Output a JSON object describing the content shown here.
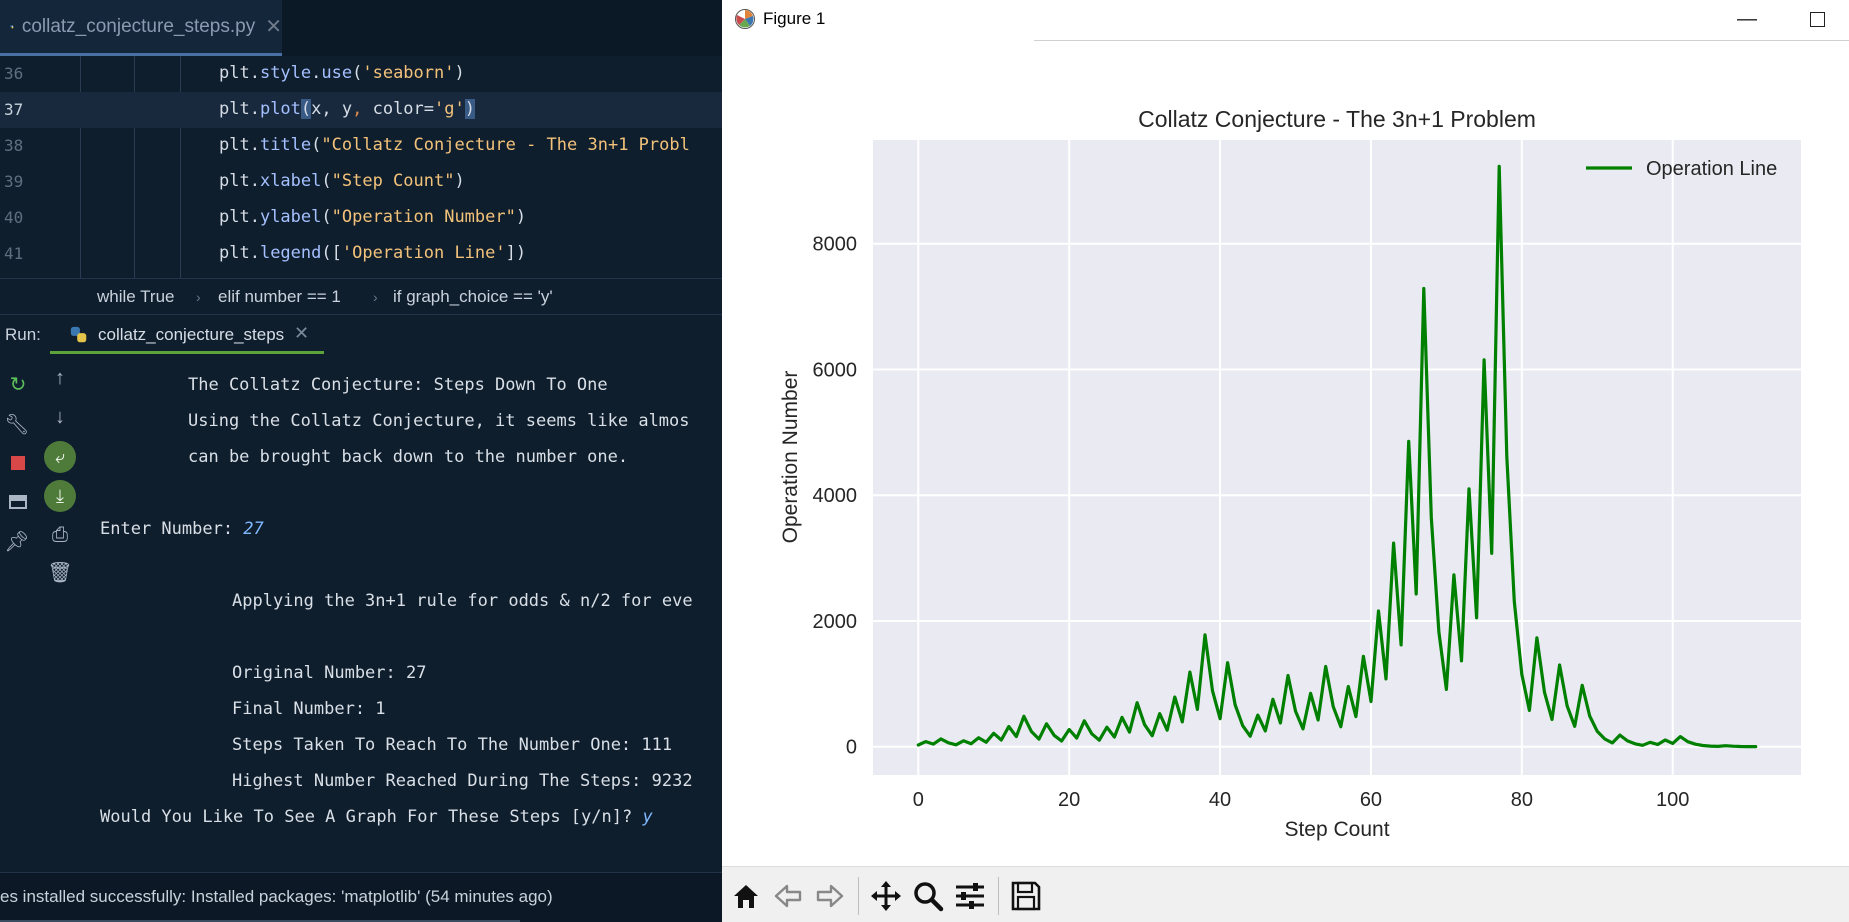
{
  "ide": {
    "tab_label": "collatz_conjecture_steps.py",
    "code_lines": [
      {
        "num": "36",
        "parts": [
          [
            "id",
            "plt."
          ],
          [
            "fn",
            "style"
          ],
          [
            "id",
            "."
          ],
          [
            "fn",
            "use"
          ],
          [
            "id",
            "("
          ],
          [
            "str",
            "'seaborn'"
          ],
          [
            "id",
            ")"
          ]
        ]
      },
      {
        "num": "37",
        "active": true,
        "parts": [
          [
            "id",
            "plt."
          ],
          [
            "fn",
            "plot"
          ],
          [
            "caret",
            "("
          ],
          [
            "id",
            "x, y"
          ],
          [
            "kw",
            ", "
          ],
          [
            "id",
            "color="
          ],
          [
            "str",
            "'g'"
          ],
          [
            "caret",
            ")"
          ]
        ]
      },
      {
        "num": "38",
        "parts": [
          [
            "id",
            "plt."
          ],
          [
            "fn",
            "title"
          ],
          [
            "id",
            "("
          ],
          [
            "str",
            "\"Collatz Conjecture - The 3n+1 Probl"
          ]
        ]
      },
      {
        "num": "39",
        "parts": [
          [
            "id",
            "plt."
          ],
          [
            "fn",
            "xlabel"
          ],
          [
            "id",
            "("
          ],
          [
            "str",
            "\"Step Count\""
          ],
          [
            "id",
            ")"
          ]
        ]
      },
      {
        "num": "40",
        "parts": [
          [
            "id",
            "plt."
          ],
          [
            "fn",
            "ylabel"
          ],
          [
            "id",
            "("
          ],
          [
            "str",
            "\"Operation Number\""
          ],
          [
            "id",
            ")"
          ]
        ]
      },
      {
        "num": "41",
        "parts": [
          [
            "id",
            "plt."
          ],
          [
            "fn",
            "legend"
          ],
          [
            "id",
            "(["
          ],
          [
            "str",
            "'Operation Line'"
          ],
          [
            "id",
            "])"
          ]
        ]
      }
    ],
    "breadcrumb": [
      "while True",
      "elif number == 1",
      "if graph_choice == 'y'"
    ],
    "run_label": "Run:",
    "run_tab_label": "collatz_conjecture_steps",
    "console": {
      "line1": "The Collatz Conjecture: Steps Down To One",
      "line2": "Using the Collatz Conjecture, it seems like almos",
      "line3": "can be brought back down to the number one.",
      "prompt": "Enter Number: ",
      "input_value": "27",
      "applying": "Applying the 3n+1 rule for odds & n/2 for eve",
      "original": "Original Number: 27",
      "final": "Final Number: 1",
      "steps": "Steps Taken To Reach To The Number One: 111",
      "highest": "Highest Number Reached During The Steps: 9232",
      "graph_prompt": "Would You Like To See A Graph For These Steps [y/n]? ",
      "graph_answer": "y"
    },
    "status_text": "es installed successfully: Installed packages: 'matplotlib' (54 minutes ago)"
  },
  "figure": {
    "window_title": "Figure 1"
  },
  "chart_data": {
    "type": "line",
    "title": "Collatz Conjecture - The 3n+1 Problem",
    "xlabel": "Step Count",
    "ylabel": "Operation Number",
    "xlim": [
      -6,
      117
    ],
    "ylim": [
      -450,
      9650
    ],
    "xticks": [
      0,
      20,
      40,
      60,
      80,
      100
    ],
    "yticks": [
      0,
      2000,
      4000,
      6000,
      8000
    ],
    "grid": true,
    "legend_position": "upper right",
    "line_color": "#008000",
    "series": [
      {
        "name": "Operation Line",
        "x": [
          0,
          1,
          2,
          3,
          4,
          5,
          6,
          7,
          8,
          9,
          10,
          11,
          12,
          13,
          14,
          15,
          16,
          17,
          18,
          19,
          20,
          21,
          22,
          23,
          24,
          25,
          26,
          27,
          28,
          29,
          30,
          31,
          32,
          33,
          34,
          35,
          36,
          37,
          38,
          39,
          40,
          41,
          42,
          43,
          44,
          45,
          46,
          47,
          48,
          49,
          50,
          51,
          52,
          53,
          54,
          55,
          56,
          57,
          58,
          59,
          60,
          61,
          62,
          63,
          64,
          65,
          66,
          67,
          68,
          69,
          70,
          71,
          72,
          73,
          74,
          75,
          76,
          77,
          78,
          79,
          80,
          81,
          82,
          83,
          84,
          85,
          86,
          87,
          88,
          89,
          90,
          91,
          92,
          93,
          94,
          95,
          96,
          97,
          98,
          99,
          100,
          101,
          102,
          103,
          104,
          105,
          106,
          107,
          108,
          109,
          110,
          111
        ],
        "y": [
          27,
          82,
          41,
          124,
          62,
          31,
          94,
          47,
          142,
          71,
          214,
          107,
          322,
          161,
          484,
          242,
          121,
          364,
          182,
          91,
          274,
          137,
          412,
          206,
          103,
          310,
          155,
          466,
          233,
          700,
          350,
          175,
          526,
          263,
          790,
          395,
          1186,
          593,
          1780,
          890,
          445,
          1336,
          668,
          334,
          167,
          502,
          251,
          754,
          377,
          1132,
          566,
          283,
          850,
          425,
          1276,
          638,
          319,
          958,
          479,
          1438,
          719,
          2158,
          1079,
          3238,
          1619,
          4858,
          2429,
          7288,
          3644,
          1822,
          911,
          2734,
          1367,
          4102,
          2051,
          6154,
          3077,
          9232,
          4616,
          2308,
          1154,
          577,
          1732,
          866,
          433,
          1300,
          650,
          325,
          976,
          488,
          244,
          122,
          61,
          184,
          92,
          46,
          23,
          70,
          35,
          106,
          53,
          160,
          80,
          40,
          20,
          10,
          5,
          16,
          8,
          4,
          2,
          1
        ]
      }
    ]
  }
}
